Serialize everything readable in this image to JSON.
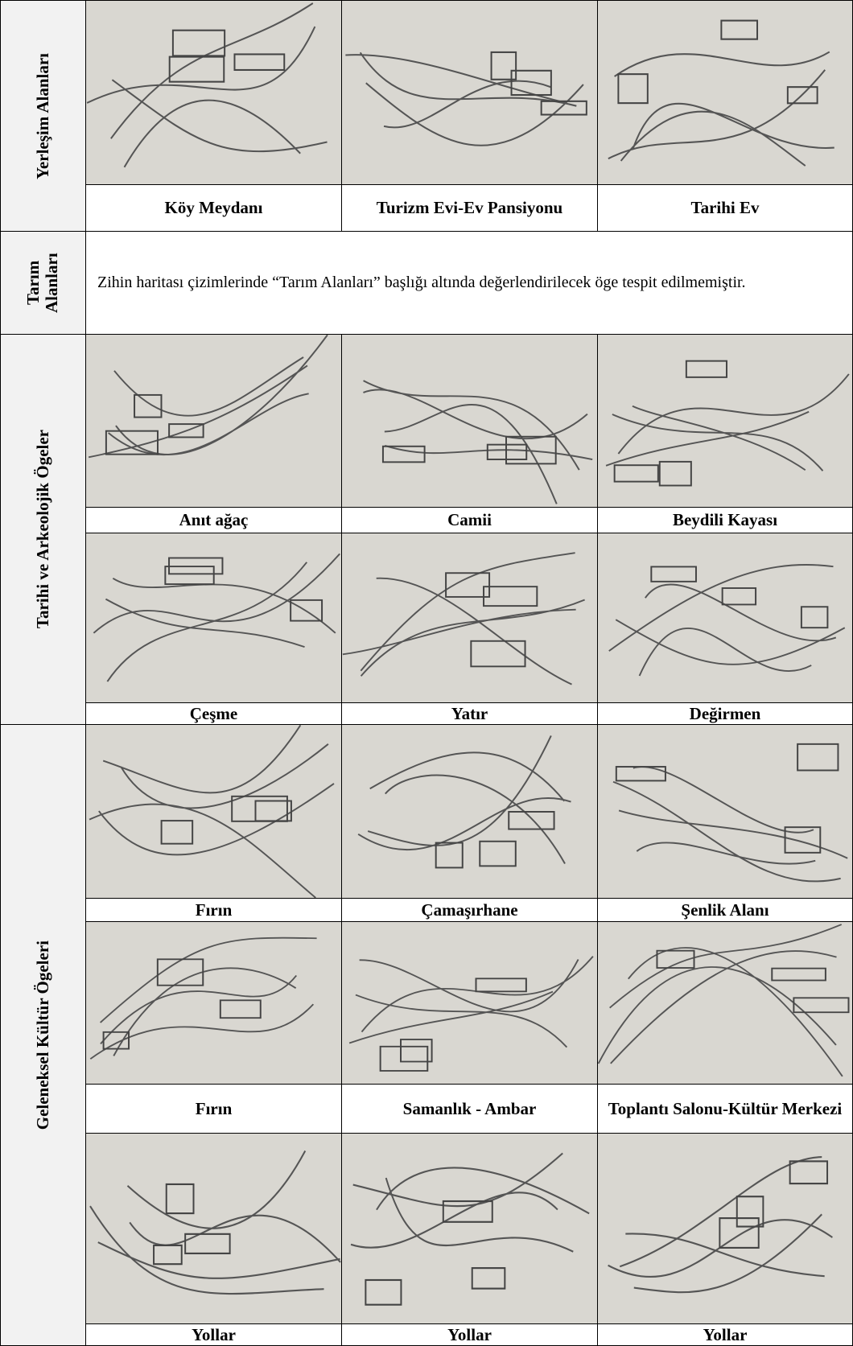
{
  "sections": [
    {
      "label": "Yerleşim Alanları",
      "rows": [
        [
          "Köy Meydanı",
          "Turizm Evi-Ev Pansiyonu",
          "Tarihi Ev"
        ]
      ]
    },
    {
      "label": "Tarım Alanları",
      "text": "Zihin haritası çizimlerinde “Tarım Alanları” başlığı altında değerlendirilecek öge tespit edilmemiştir."
    },
    {
      "label": "Tarihi ve Arkeolojik Ögeler",
      "rows": [
        [
          "Anıt ağaç",
          "Camii",
          "Beydili Kayası"
        ],
        [
          "Çeşme",
          "Yatır",
          "Değirmen"
        ]
      ]
    },
    {
      "label": "Geleneksel Kültür Ögeleri",
      "rows": [
        [
          "Fırın",
          "Çamaşırhane",
          "Şenlik Alanı"
        ],
        [
          "Fırın",
          "Samanlık - Ambar",
          "Toplantı Salonu-Kültür Merkezi"
        ],
        [
          "Yollar",
          "Yollar",
          "Yollar"
        ]
      ]
    }
  ]
}
